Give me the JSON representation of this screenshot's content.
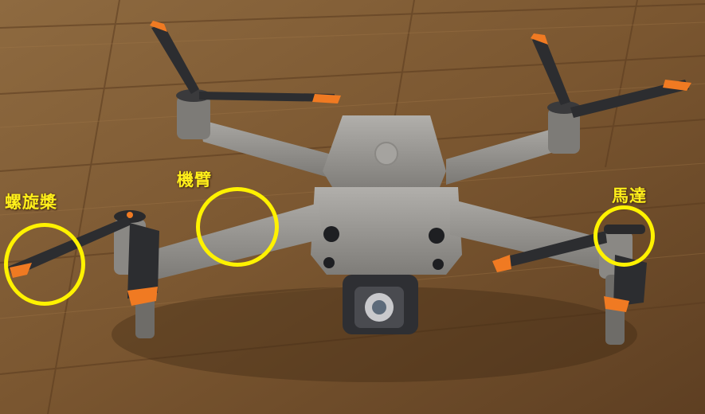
{
  "labels": {
    "propeller": "螺旋槳",
    "arm": "機臂",
    "motor": "馬達"
  },
  "colors": {
    "callout": "#fff200",
    "label_text": "#ffef1a",
    "floor": "#8a6238",
    "drone_body": "#9a9894",
    "propeller": "#2c2d30",
    "prop_tip": "#f07a22"
  }
}
